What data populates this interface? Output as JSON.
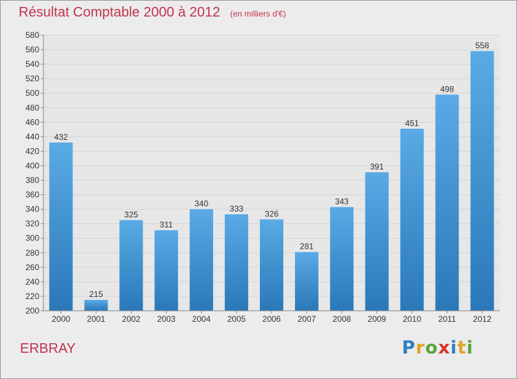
{
  "header": {
    "title": "Résultat Comptable 2000 à 2012",
    "subtitle": "(en milliers d'€)"
  },
  "footer": {
    "town": "ERBRAY",
    "logo": "Proxiti",
    "logo_letters": [
      {
        "ch": "P",
        "color": "#2e7fc1"
      },
      {
        "ch": "r",
        "color": "#e3a323"
      },
      {
        "ch": "o",
        "color": "#5aa53a"
      },
      {
        "ch": "x",
        "color": "#d8372d"
      },
      {
        "ch": "i",
        "color": "#2e7fc1"
      },
      {
        "ch": "t",
        "color": "#e3a323"
      },
      {
        "ch": "i",
        "color": "#5aa53a"
      }
    ]
  },
  "colors": {
    "bar_top": "#5aaae6",
    "bar_bottom": "#2a78b8",
    "grid": "#d4d4d4",
    "axis": "#888888"
  },
  "chart_data": {
    "type": "bar",
    "title": "Résultat Comptable 2000 à 2012",
    "subtitle": "(en milliers d'€)",
    "categories": [
      "2000",
      "2001",
      "2002",
      "2003",
      "2004",
      "2005",
      "2006",
      "2007",
      "2008",
      "2009",
      "2010",
      "2011",
      "2012"
    ],
    "values": [
      432,
      215,
      325,
      311,
      340,
      333,
      326,
      281,
      343,
      391,
      451,
      498,
      558
    ],
    "ylim": [
      200,
      580
    ],
    "ystep": 20,
    "xlabel": "",
    "ylabel": "",
    "grid": true
  }
}
